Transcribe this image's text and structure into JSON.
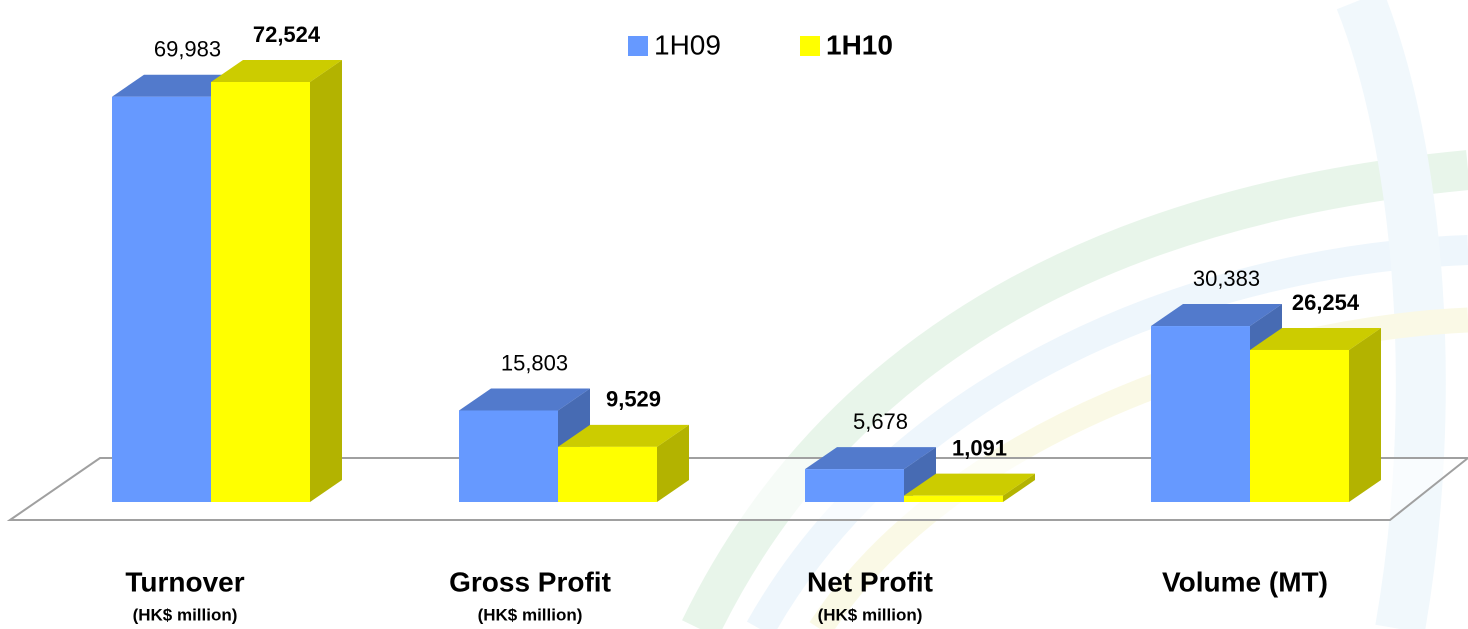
{
  "chart_data": {
    "type": "bar3d",
    "categories": [
      "Turnover",
      "Gross Profit",
      "Net Profit",
      "Volume (MT)"
    ],
    "category_units": [
      "(HK$ million)",
      "(HK$ million)",
      "(HK$ million)",
      null
    ],
    "series": [
      {
        "name": "1H09",
        "color": "#6699ff",
        "values": [
          69983,
          15803,
          5678,
          30383
        ],
        "value_labels": [
          "69,983",
          "15,803",
          "5,678",
          "30,383"
        ]
      },
      {
        "name": "1H10",
        "color": "#ffff00",
        "values": [
          72524,
          9529,
          1091,
          26254
        ],
        "value_labels": [
          "72,524",
          "9,529",
          "1,091",
          "26,254"
        ]
      }
    ],
    "legend": "top"
  }
}
